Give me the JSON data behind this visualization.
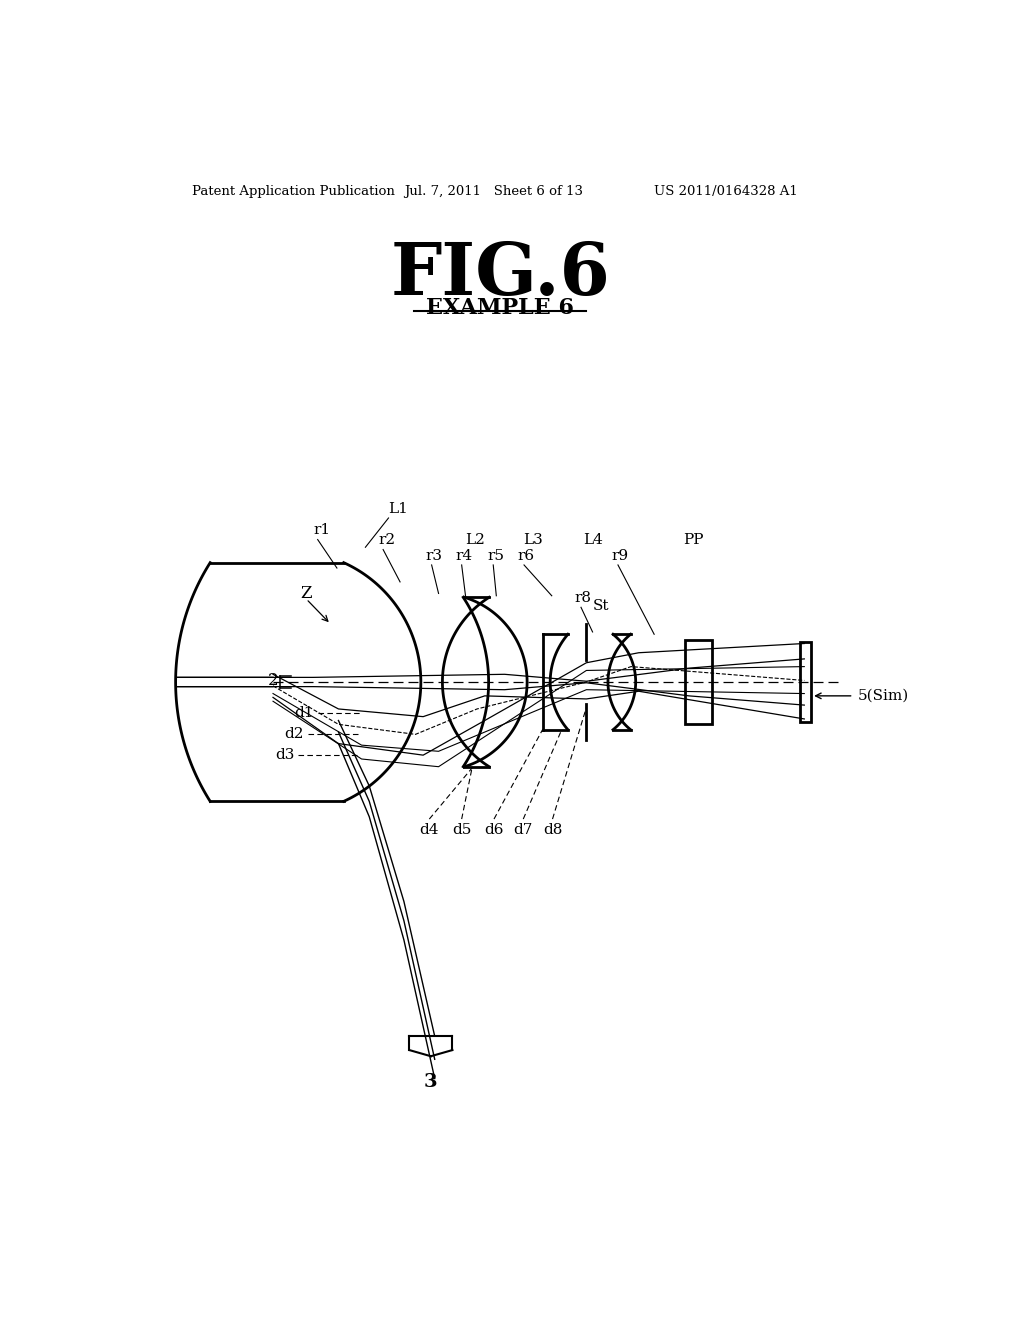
{
  "title": "FIG.6",
  "subtitle": "EXAMPLE 6",
  "header_left": "Patent Application Publication",
  "header_mid": "Jul. 7, 2011   Sheet 6 of 13",
  "header_right": "US 2011/0164328 A1",
  "bg_color": "#ffffff"
}
